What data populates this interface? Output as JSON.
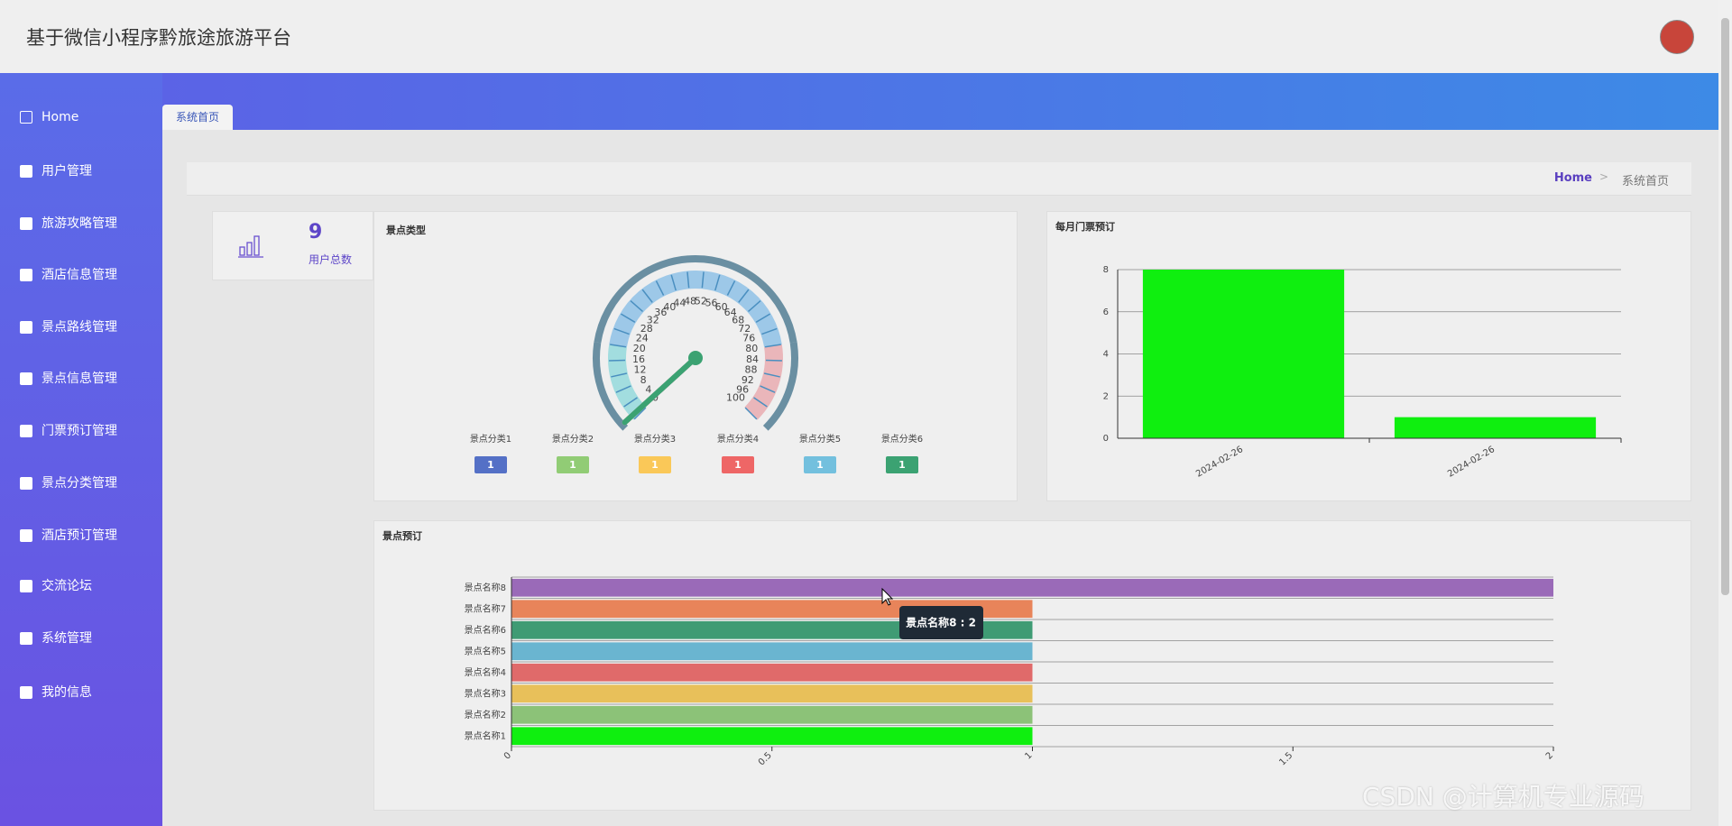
{
  "header": {
    "title": "基于微信小程序黔旅途旅游平台"
  },
  "sidebar": {
    "items": [
      "Home",
      "用户管理",
      "旅游攻略管理",
      "酒店信息管理",
      "景点路线管理",
      "景点信息管理",
      "门票预订管理",
      "景点分类管理",
      "酒店预订管理",
      "交流论坛",
      "系统管理",
      "我的信息"
    ]
  },
  "tabs": [
    "系统首页"
  ],
  "breadcrumb": [
    "Home",
    "系统首页"
  ],
  "stats": {
    "value": 9,
    "label": "用户总数"
  },
  "chart_data": [
    {
      "type": "gauge",
      "title": "景点类型",
      "range": [
        0,
        100
      ],
      "ticks": [
        0,
        4,
        8,
        12,
        16,
        20,
        24,
        28,
        32,
        36,
        40,
        44,
        48,
        52,
        56,
        60,
        64,
        68,
        72,
        76,
        80,
        84,
        88,
        92,
        96,
        100
      ],
      "categories": [
        "景点分类1",
        "景点分类2",
        "景点分类3",
        "景点分类4",
        "景点分类5",
        "景点分类6"
      ],
      "values": [
        1,
        1,
        1,
        1,
        1,
        1
      ],
      "colors": [
        "#5470c6",
        "#91cc75",
        "#fac858",
        "#ee6666",
        "#73c0de",
        "#3ba272"
      ]
    },
    {
      "type": "bar",
      "title": "每月门票预订",
      "categories": [
        "2024-02-26",
        "2024-02-26"
      ],
      "values": [
        8,
        1
      ],
      "color": "#0fef0f",
      "ylim": [
        0,
        8
      ],
      "yticks": [
        0,
        2,
        4,
        6,
        8
      ],
      "grid": true
    },
    {
      "type": "hbar",
      "title": "景点预订",
      "categories": [
        "景点名称1",
        "景点名称2",
        "景点名称3",
        "景点名称4",
        "景点名称5",
        "景点名称6",
        "景点名称7",
        "景点名称8"
      ],
      "values": [
        1,
        1,
        1,
        1,
        1,
        1,
        1,
        2
      ],
      "colors": [
        "#0fef0f",
        "#8cc278",
        "#e8c05a",
        "#e06a6a",
        "#6ab5d0",
        "#3f9b74",
        "#e8845a",
        "#9a6ab8"
      ],
      "xlim": [
        0,
        2
      ],
      "xticks": [
        0,
        0.5,
        1,
        1.5,
        2
      ],
      "tooltip": "景点名称8 : 2"
    }
  ],
  "watermark": "CSDN @计算机专业源码"
}
